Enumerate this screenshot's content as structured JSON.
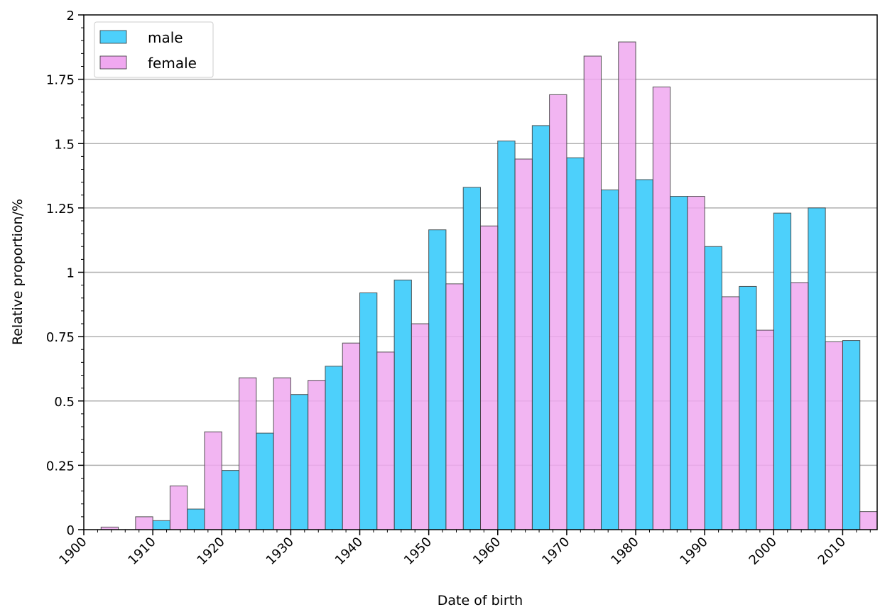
{
  "chart_data": {
    "type": "bar",
    "xlabel": "Date of birth",
    "ylabel": "Relative proportion/%",
    "xlim": [
      1900,
      2015
    ],
    "ylim": [
      0,
      2
    ],
    "x_ticks": [
      1900,
      1910,
      1920,
      1930,
      1940,
      1950,
      1960,
      1970,
      1980,
      1990,
      2000,
      2010
    ],
    "x_tick_labels": [
      "1900",
      "1910",
      "1920",
      "1930",
      "1940",
      "1950",
      "1960",
      "1970",
      "1980",
      "1990",
      "2000",
      "2010"
    ],
    "y_ticks": [
      0,
      0.25,
      0.5,
      0.75,
      1,
      1.25,
      1.5,
      1.75,
      2
    ],
    "y_tick_labels": [
      "0",
      "0.25",
      "0.5",
      "0.75",
      "1",
      "1.25",
      "1.5",
      "1.75",
      "2"
    ],
    "grid": "horizontal",
    "legend_position": "top-left",
    "bin_starts": [
      1900,
      1905,
      1910,
      1915,
      1920,
      1925,
      1930,
      1935,
      1940,
      1945,
      1950,
      1955,
      1960,
      1965,
      1970,
      1975,
      1980,
      1985,
      1990,
      1995,
      2000,
      2005,
      2010
    ],
    "series": [
      {
        "name": "male",
        "color": "#4dd0fb",
        "values": [
          0,
          0,
          0.035,
          0.08,
          0.23,
          0.375,
          0.525,
          0.635,
          0.92,
          0.97,
          1.165,
          1.33,
          1.51,
          1.57,
          1.445,
          1.32,
          1.36,
          1.295,
          1.1,
          0.945,
          1.23,
          1.25,
          0.735
        ]
      },
      {
        "name": "female",
        "color": "#f0a8f0",
        "values": [
          0.01,
          0.05,
          0.17,
          0.38,
          0.59,
          0.59,
          0.58,
          0.725,
          0.69,
          0.8,
          0.955,
          1.18,
          1.44,
          1.69,
          1.84,
          1.895,
          1.72,
          1.295,
          0.905,
          0.775,
          0.96,
          0.73,
          0.07
        ]
      }
    ]
  }
}
